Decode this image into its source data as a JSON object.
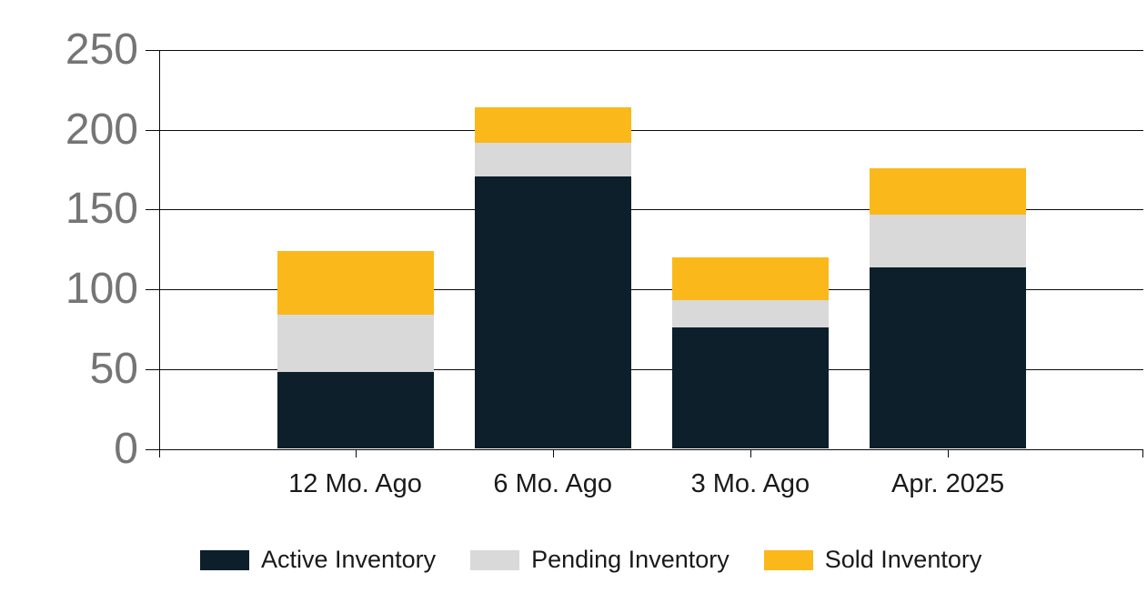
{
  "chart_data": {
    "type": "bar",
    "stacked": true,
    "title": "",
    "xlabel": "",
    "ylabel": "",
    "categories": [
      "12 Mo. Ago",
      "6 Mo. Ago",
      "3 Mo. Ago",
      "Apr. 2025"
    ],
    "series": [
      {
        "name": "Active Inventory",
        "color": "#0c1f2b",
        "values": [
          48,
          171,
          76,
          114
        ]
      },
      {
        "name": "Pending Inventory",
        "color": "#d9d9d9",
        "values": [
          36,
          21,
          17,
          33
        ]
      },
      {
        "name": "Sold Inventory",
        "color": "#fbb81a",
        "values": [
          40,
          22,
          27,
          29
        ]
      }
    ],
    "stack_totals": [
      124,
      214,
      120,
      176
    ],
    "ylim": [
      0,
      250
    ],
    "yticks": [
      0,
      50,
      100,
      150,
      200,
      250
    ],
    "grid": true,
    "legend_position": "bottom",
    "axis_label_color": "#757575",
    "category_label_color": "#1a1a1a",
    "gridline_color": "#0a0a0a",
    "background_color": "#ffffff"
  }
}
